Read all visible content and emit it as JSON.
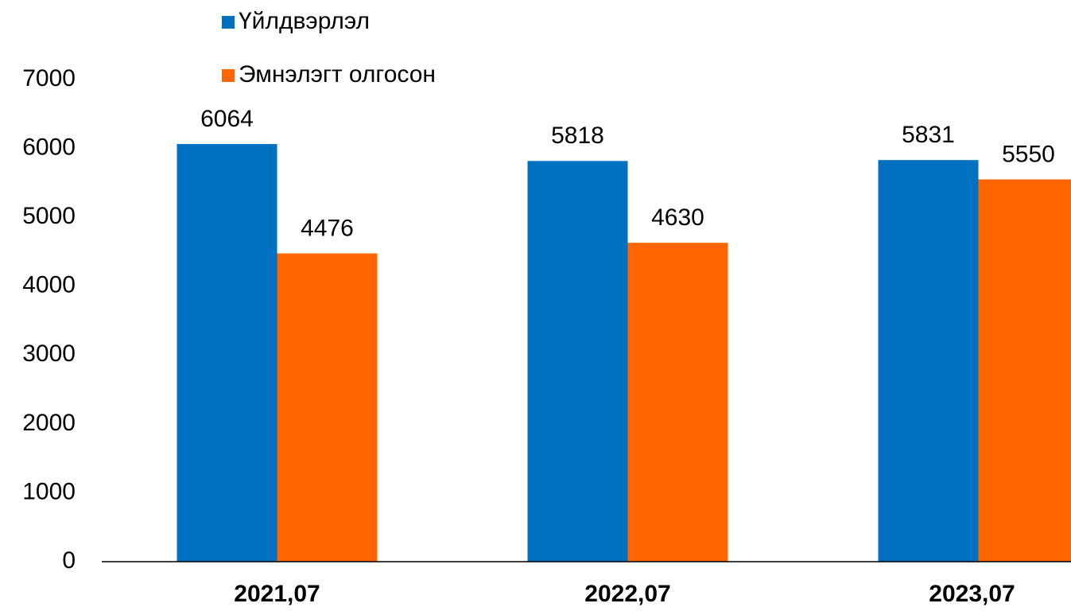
{
  "chart_data": {
    "type": "bar",
    "categories": [
      "2021,07",
      "2022,07",
      "2023,07"
    ],
    "series": [
      {
        "name": "Үйлдвэрлэл",
        "color": "#0070c0",
        "values": [
          6064,
          5818,
          5831
        ]
      },
      {
        "name": "Эмнэлэгт олгосон",
        "color": "#ff6600",
        "values": [
          4476,
          4630,
          5550
        ]
      }
    ],
    "ylim": [
      0,
      7000
    ],
    "yticks": [
      0,
      1000,
      2000,
      3000,
      4000,
      5000,
      6000,
      7000
    ],
    "grid": false,
    "legend": "top"
  }
}
